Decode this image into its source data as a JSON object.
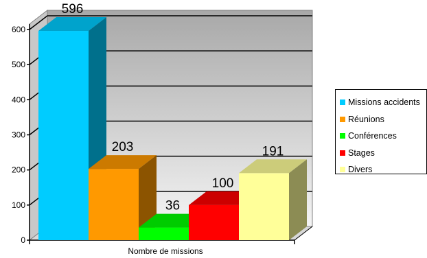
{
  "chart_data": {
    "type": "bar",
    "xlabel": "Nombre de missions",
    "ylabel": "",
    "ylim": [
      0,
      600
    ],
    "yticks": [
      "0",
      "100",
      "200",
      "300",
      "400",
      "500",
      "600"
    ],
    "grid": true,
    "legend_position": "right",
    "series": [
      {
        "name": "Missions accidents",
        "value": 596,
        "color": "#00ccff"
      },
      {
        "name": "Réunions",
        "value": 203,
        "color": "#ff9900"
      },
      {
        "name": "Conférences",
        "value": 36,
        "color": "#00ff00"
      },
      {
        "name": "Stages",
        "value": 100,
        "color": "#ff0000"
      },
      {
        "name": "Divers",
        "value": 191,
        "color": "#ffff99"
      }
    ]
  }
}
